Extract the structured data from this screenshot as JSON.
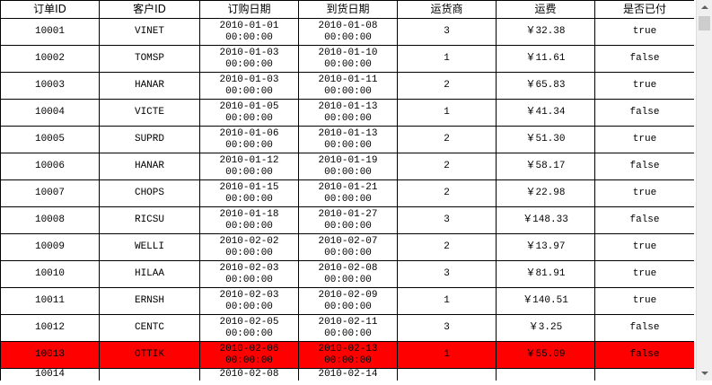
{
  "table": {
    "headers": [
      "订单ID",
      "客户ID",
      "订购日期",
      "到货日期",
      "运货商",
      "运费",
      "是否已付"
    ],
    "rows": [
      [
        "10001",
        "VINET",
        "2010-01-01 00:00:00",
        "2010-01-08 00:00:00",
        "3",
        "￥32.38",
        "true"
      ],
      [
        "10002",
        "TOMSP",
        "2010-01-03 00:00:00",
        "2010-01-10 00:00:00",
        "1",
        "￥11.61",
        "false"
      ],
      [
        "10003",
        "HANAR",
        "2010-01-03 00:00:00",
        "2010-01-11 00:00:00",
        "2",
        "￥65.83",
        "true"
      ],
      [
        "10004",
        "VICTE",
        "2010-01-05 00:00:00",
        "2010-01-13 00:00:00",
        "1",
        "￥41.34",
        "false"
      ],
      [
        "10005",
        "SUPRD",
        "2010-01-06 00:00:00",
        "2010-01-13 00:00:00",
        "2",
        "￥51.30",
        "true"
      ],
      [
        "10006",
        "HANAR",
        "2010-01-12 00:00:00",
        "2010-01-19 00:00:00",
        "2",
        "￥58.17",
        "false"
      ],
      [
        "10007",
        "CHOPS",
        "2010-01-15 00:00:00",
        "2010-01-21 00:00:00",
        "2",
        "￥22.98",
        "true"
      ],
      [
        "10008",
        "RICSU",
        "2010-01-18 00:00:00",
        "2010-01-27 00:00:00",
        "3",
        "￥148.33",
        "false"
      ],
      [
        "10009",
        "WELLI",
        "2010-02-02 00:00:00",
        "2010-02-07 00:00:00",
        "2",
        "￥13.97",
        "true"
      ],
      [
        "10010",
        "HILAA",
        "2010-02-03 00:00:00",
        "2010-02-08 00:00:00",
        "3",
        "￥81.91",
        "true"
      ],
      [
        "10011",
        "ERNSH",
        "2010-02-03 00:00:00",
        "2010-02-09 00:00:00",
        "1",
        "￥140.51",
        "true"
      ],
      [
        "10012",
        "CENTC",
        "2010-02-05 00:00:00",
        "2010-02-11 00:00:00",
        "3",
        "￥3.25",
        "false"
      ],
      [
        "10013",
        "OTTIK",
        "2010-02-06 00:00:00",
        "2010-02-13 00:00:00",
        "1",
        "￥55.09",
        "false"
      ]
    ],
    "partial_row": [
      "10014",
      "2010-02-08",
      "2010-02-14"
    ],
    "selected_row": "10013",
    "selected_color": "#ff0000"
  }
}
